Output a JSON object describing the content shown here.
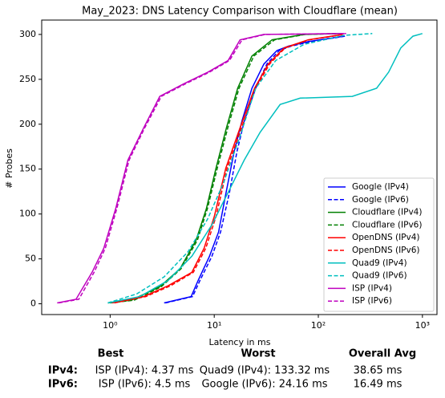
{
  "chart_data": {
    "type": "line",
    "title": "May_2023: DNS Latency Comparison with Cloudflare (mean)",
    "xlabel": "Latency in ms",
    "ylabel": "# Probes",
    "xscale": "log",
    "xlim": [
      0.22,
      1380
    ],
    "ylim": [
      -12,
      316
    ],
    "xticks": [
      {
        "value": 1,
        "label": "10⁰"
      },
      {
        "value": 10,
        "label": "10¹"
      },
      {
        "value": 100,
        "label": "10²"
      },
      {
        "value": 1000,
        "label": "10³"
      }
    ],
    "yticks": [
      0,
      50,
      100,
      150,
      200,
      250,
      300
    ],
    "legend": "lower right",
    "series": [
      {
        "name": "Google (IPv4)",
        "color": "#0000ff",
        "linestyle": "solid",
        "x": [
          3.3,
          6,
          7,
          9,
          11,
          13,
          15.5,
          18.5,
          23,
          30,
          40,
          52,
          80,
          175
        ],
        "values": [
          1,
          8,
          26,
          53,
          80,
          124,
          169,
          204,
          240,
          267,
          282,
          287,
          292,
          298
        ]
      },
      {
        "name": "Google (IPv6)",
        "color": "#0000ff",
        "linestyle": "dashed",
        "x": [
          3.4,
          6.2,
          7.3,
          9.5,
          11.5,
          14,
          16.5,
          19.5,
          25,
          32,
          42,
          55,
          85,
          180
        ],
        "values": [
          1,
          8,
          26,
          53,
          80,
          124,
          169,
          204,
          240,
          267,
          282,
          287,
          292,
          298
        ]
      },
      {
        "name": "Cloudflare (IPv4)",
        "color": "#008000",
        "linestyle": "solid",
        "x": [
          0.95,
          1.6,
          3,
          4.7,
          6.7,
          8.4,
          10.4,
          13.1,
          16.8,
          23,
          36,
          73,
          163
        ],
        "values": [
          1,
          4,
          19,
          39,
          71,
          106,
          151,
          196,
          240,
          276,
          294,
          300,
          301
        ]
      },
      {
        "name": "Cloudflare (IPv6)",
        "color": "#008000",
        "linestyle": "dashed",
        "x": [
          1,
          1.7,
          3.1,
          4.8,
          6.9,
          8.6,
          10.7,
          13.5,
          17.3,
          24,
          38,
          75,
          170
        ],
        "values": [
          1,
          4,
          19,
          39,
          71,
          106,
          151,
          196,
          240,
          276,
          294,
          300,
          301
        ]
      },
      {
        "name": "OpenDNS (IPv4)",
        "color": "#ff0000",
        "linestyle": "solid",
        "x": [
          1.04,
          2.1,
          3.6,
          6.1,
          8,
          10,
          12.9,
          17.7,
          24.4,
          33,
          47,
          80,
          172
        ],
        "values": [
          1,
          8,
          20,
          35,
          62,
          97,
          151,
          196,
          240,
          267,
          285,
          294,
          300
        ]
      },
      {
        "name": "OpenDNS (IPv6)",
        "color": "#ff0000",
        "linestyle": "dashed",
        "x": [
          1.1,
          2.2,
          3.8,
          6.3,
          8.3,
          10.4,
          13.3,
          18.3,
          25,
          34,
          48,
          82,
          176
        ],
        "values": [
          1,
          8,
          20,
          35,
          62,
          97,
          151,
          196,
          240,
          267,
          285,
          294,
          300
        ]
      },
      {
        "name": "Quad9 (IPv4)",
        "color": "#00bfbf",
        "linestyle": "solid",
        "x": [
          0.95,
          1.93,
          3.6,
          6.1,
          9.5,
          13.6,
          19.4,
          27.6,
          43,
          67,
          212,
          363,
          474,
          620,
          810,
          1000
        ],
        "values": [
          1,
          8,
          26,
          53,
          88,
          124,
          160,
          191,
          222,
          229,
          231,
          240,
          258,
          285,
          298,
          301
        ]
      },
      {
        "name": "Quad9 (IPv6)",
        "color": "#00bfbf",
        "linestyle": "dashed",
        "x": [
          0.95,
          1.8,
          3.3,
          5.6,
          8.6,
          12.3,
          17.5,
          25,
          39,
          73,
          178,
          330
        ],
        "values": [
          1,
          11,
          30,
          58,
          94,
          135,
          185,
          240,
          271,
          289,
          299,
          301
        ]
      },
      {
        "name": "ISP (IPv4)",
        "color": "#bf00bf",
        "linestyle": "solid",
        "x": [
          0.31,
          0.47,
          0.67,
          0.87,
          1.13,
          1.48,
          2.1,
          3,
          5.1,
          8.7,
          13.6,
          17.7,
          30,
          178
        ],
        "values": [
          1,
          5,
          35,
          62,
          106,
          160,
          196,
          231,
          245,
          258,
          271,
          294,
          300,
          301
        ]
      },
      {
        "name": "ISP (IPv6)",
        "color": "#bf00bf",
        "linestyle": "dashed",
        "x": [
          0.32,
          0.5,
          0.7,
          0.9,
          1.16,
          1.52,
          2.15,
          3.1,
          5.3,
          9,
          14,
          18.5,
          31,
          185
        ],
        "values": [
          1,
          5,
          35,
          62,
          106,
          160,
          196,
          231,
          245,
          258,
          271,
          294,
          300,
          301
        ]
      }
    ]
  },
  "summary": {
    "headers": [
      "Best",
      "Worst",
      "Overall Avg"
    ],
    "rows": [
      [
        "IPv4:",
        "ISP (IPv4): 4.37 ms",
        "Quad9 (IPv4): 133.32 ms",
        "38.65 ms"
      ],
      [
        "IPv6:",
        "ISP (IPv6): 4.5 ms",
        "Google (IPv6): 24.16 ms",
        "16.49 ms"
      ]
    ]
  }
}
